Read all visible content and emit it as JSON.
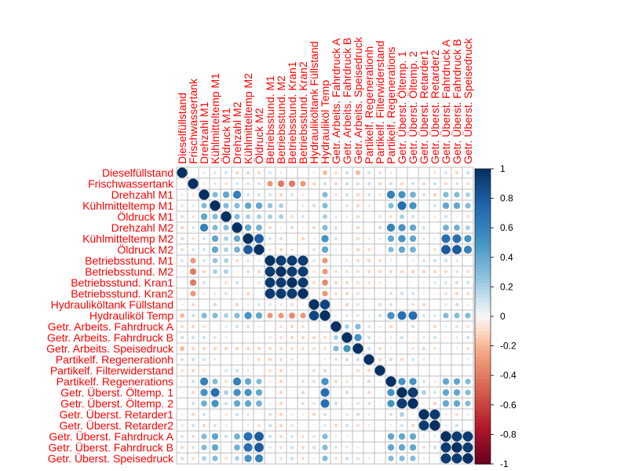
{
  "chart_data": {
    "type": "heatmap",
    "variables": [
      "Dieselfüllstand",
      "Frischwassertank",
      "Drehzahl M1",
      "Kühlmitteltemp M1",
      "Öldruck M1",
      "Drehzahl M2",
      "Kühlmitteltemp M2",
      "Öldruck M2",
      "Betriebsstund. M1",
      "Betriebsstund. M2",
      "Betriebsstund. Kran1",
      "Betriebsstund. Kran2",
      "Hydrauliköltank Füllstand",
      "Hydrauliköl Temp",
      "Getr. Arbeits. Fahrdruck A",
      "Getr. Arbeits. Fahrdruck B",
      "Getr. Arbeits. Speisedruck",
      "Partikelf. Regenerationh",
      "Partikelf. Filterwiderstand",
      "Partikelf. Regenerations",
      "Getr. Überst. Öltemp. 1",
      "Getr. Überst. Öltemp. 2",
      "Getr. Überst. Retarder1",
      "Getr. Überst. Retarder2",
      "Getr. Überst. Fahrdruck A",
      "Getr. Überst. Fahrdruck B",
      "Getr. Überst. Speisedruck"
    ],
    "correlations": [
      {
        "i": 2,
        "j": 3,
        "r": 0.3
      },
      {
        "i": 2,
        "j": 4,
        "r": 0.4
      },
      {
        "i": 2,
        "j": 5,
        "r": 0.6
      },
      {
        "i": 2,
        "j": 6,
        "r": 0.1
      },
      {
        "i": 2,
        "j": 7,
        "r": 0.1
      },
      {
        "i": 2,
        "j": 19,
        "r": 0.6
      },
      {
        "i": 2,
        "j": 20,
        "r": 0.5
      },
      {
        "i": 2,
        "j": 21,
        "r": 0.35
      },
      {
        "i": 2,
        "j": 24,
        "r": 0.3
      },
      {
        "i": 2,
        "j": 25,
        "r": 0.3
      },
      {
        "i": 2,
        "j": 26,
        "r": 0.2
      },
      {
        "i": 3,
        "j": 4,
        "r": 0.3
      },
      {
        "i": 3,
        "j": 5,
        "r": 0.3
      },
      {
        "i": 3,
        "j": 6,
        "r": 0.4
      },
      {
        "i": 3,
        "j": 7,
        "r": 0.4
      },
      {
        "i": 3,
        "j": 19,
        "r": 0.3
      },
      {
        "i": 3,
        "j": 20,
        "r": 0.7
      },
      {
        "i": 3,
        "j": 21,
        "r": 0.5
      },
      {
        "i": 3,
        "j": 24,
        "r": 0.4
      },
      {
        "i": 3,
        "j": 25,
        "r": 0.4
      },
      {
        "i": 3,
        "j": 26,
        "r": 0.3
      },
      {
        "i": 4,
        "j": 5,
        "r": 0.3
      },
      {
        "i": 4,
        "j": 6,
        "r": 0.2
      },
      {
        "i": 4,
        "j": 7,
        "r": 0.2
      },
      {
        "i": 4,
        "j": 20,
        "r": 0.2
      },
      {
        "i": 5,
        "j": 6,
        "r": 0.4
      },
      {
        "i": 5,
        "j": 7,
        "r": 0.35
      },
      {
        "i": 5,
        "j": 19,
        "r": 0.6
      },
      {
        "i": 5,
        "j": 20,
        "r": 0.5
      },
      {
        "i": 5,
        "j": 21,
        "r": 0.4
      },
      {
        "i": 5,
        "j": 24,
        "r": 0.35
      },
      {
        "i": 5,
        "j": 25,
        "r": 0.35
      },
      {
        "i": 5,
        "j": 26,
        "r": 0.2
      },
      {
        "i": 6,
        "j": 7,
        "r": 0.8
      },
      {
        "i": 6,
        "j": 19,
        "r": 0.4
      },
      {
        "i": 6,
        "j": 20,
        "r": 0.5
      },
      {
        "i": 6,
        "j": 21,
        "r": 0.4
      },
      {
        "i": 6,
        "j": 24,
        "r": 0.7
      },
      {
        "i": 6,
        "j": 25,
        "r": 0.7
      },
      {
        "i": 6,
        "j": 26,
        "r": 0.5
      },
      {
        "i": 7,
        "j": 19,
        "r": 0.3
      },
      {
        "i": 7,
        "j": 20,
        "r": 0.4
      },
      {
        "i": 7,
        "j": 21,
        "r": 0.35
      },
      {
        "i": 7,
        "j": 24,
        "r": 0.8
      },
      {
        "i": 7,
        "j": 25,
        "r": 0.8
      },
      {
        "i": 7,
        "j": 26,
        "r": 0.6
      },
      {
        "i": 1,
        "j": 8,
        "r": -0.3
      },
      {
        "i": 1,
        "j": 9,
        "r": -0.4
      },
      {
        "i": 1,
        "j": 10,
        "r": -0.4
      },
      {
        "i": 1,
        "j": 11,
        "r": -0.3
      },
      {
        "i": 8,
        "j": 9,
        "r": 0.95
      },
      {
        "i": 8,
        "j": 10,
        "r": 0.95
      },
      {
        "i": 8,
        "j": 11,
        "r": 0.95
      },
      {
        "i": 9,
        "j": 10,
        "r": 0.95
      },
      {
        "i": 9,
        "j": 11,
        "r": 0.95
      },
      {
        "i": 10,
        "j": 11,
        "r": 0.95
      },
      {
        "i": 8,
        "j": 13,
        "r": -0.3
      },
      {
        "i": 9,
        "j": 13,
        "r": -0.3
      },
      {
        "i": 10,
        "j": 13,
        "r": -0.35
      },
      {
        "i": 11,
        "j": 13,
        "r": -0.3
      },
      {
        "i": 2,
        "j": 8,
        "r": 0.1
      },
      {
        "i": 3,
        "j": 8,
        "r": 0.25
      },
      {
        "i": 3,
        "j": 9,
        "r": 0.2
      },
      {
        "i": 4,
        "j": 8,
        "r": 0.2
      },
      {
        "i": 4,
        "j": 9,
        "r": 0.2
      },
      {
        "i": 12,
        "j": 13,
        "r": 0.9
      },
      {
        "i": 2,
        "j": 13,
        "r": 0.3
      },
      {
        "i": 3,
        "j": 13,
        "r": 0.3
      },
      {
        "i": 4,
        "j": 13,
        "r": 0.2
      },
      {
        "i": 5,
        "j": 13,
        "r": 0.3
      },
      {
        "i": 6,
        "j": 13,
        "r": 0.5
      },
      {
        "i": 7,
        "j": 13,
        "r": 0.4
      },
      {
        "i": 13,
        "j": 19,
        "r": 0.5
      },
      {
        "i": 13,
        "j": 20,
        "r": 0.7
      },
      {
        "i": 13,
        "j": 21,
        "r": 0.7
      },
      {
        "i": 13,
        "j": 24,
        "r": 0.3
      },
      {
        "i": 13,
        "j": 25,
        "r": 0.3
      },
      {
        "i": 13,
        "j": 26,
        "r": 0.3
      },
      {
        "i": 14,
        "j": 15,
        "r": 0.2
      },
      {
        "i": 14,
        "j": 16,
        "r": 0.3
      },
      {
        "i": 15,
        "j": 16,
        "r": 0.5
      },
      {
        "i": 0,
        "j": 13,
        "r": -0.2
      },
      {
        "i": 0,
        "j": 16,
        "r": -0.2
      },
      {
        "i": 19,
        "j": 20,
        "r": 0.5
      },
      {
        "i": 19,
        "j": 21,
        "r": 0.5
      },
      {
        "i": 19,
        "j": 24,
        "r": 0.4
      },
      {
        "i": 19,
        "j": 25,
        "r": 0.4
      },
      {
        "i": 19,
        "j": 26,
        "r": 0.3
      },
      {
        "i": 20,
        "j": 21,
        "r": 0.95
      },
      {
        "i": 20,
        "j": 24,
        "r": 0.4
      },
      {
        "i": 20,
        "j": 25,
        "r": 0.4
      },
      {
        "i": 20,
        "j": 26,
        "r": 0.3
      },
      {
        "i": 20,
        "j": 22,
        "r": 0.2
      },
      {
        "i": 21,
        "j": 24,
        "r": 0.4
      },
      {
        "i": 21,
        "j": 25,
        "r": 0.4
      },
      {
        "i": 21,
        "j": 26,
        "r": 0.3
      },
      {
        "i": 22,
        "j": 23,
        "r": 0.95
      },
      {
        "i": 24,
        "j": 25,
        "r": 0.95
      },
      {
        "i": 24,
        "j": 26,
        "r": 0.95
      },
      {
        "i": 25,
        "j": 26,
        "r": 0.95
      }
    ],
    "colorbar": {
      "ticks": [
        "1",
        "0.8",
        "0.6",
        "0.4",
        "0.2",
        "0",
        "-0.2",
        "-0.4",
        "-0.6",
        "-0.8",
        "-1"
      ],
      "range": [
        -1,
        1
      ]
    },
    "colors": {
      "positive_strong": "#053061",
      "positive_mid": "#4393c3",
      "neutral": "#f7f7f7",
      "negative_mid": "#d6604d",
      "negative_strong": "#67001f",
      "label_color": "#ff0000",
      "grid_color": "#bfbfbf"
    }
  }
}
